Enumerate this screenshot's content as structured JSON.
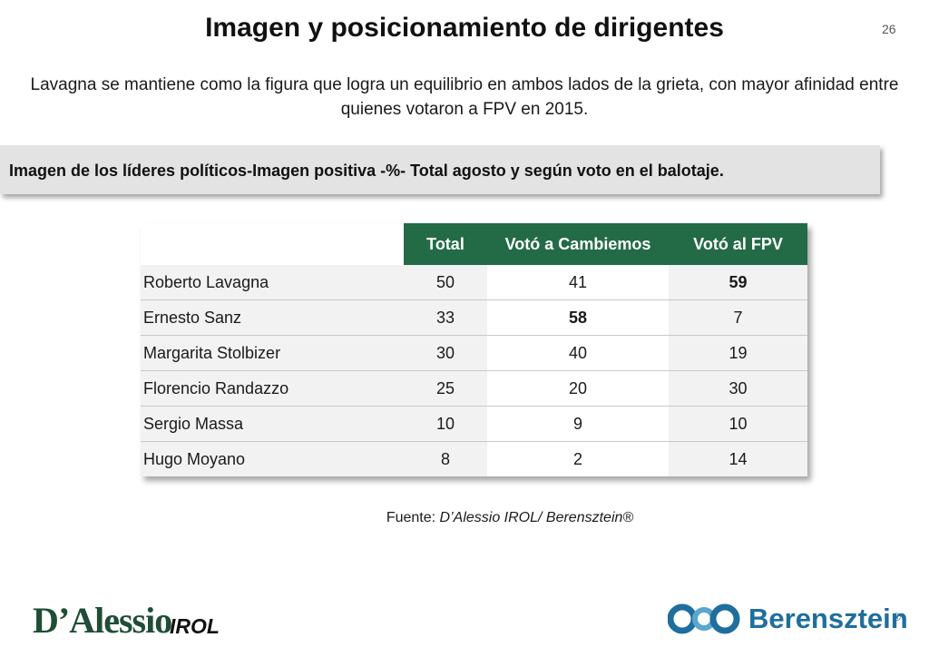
{
  "page": {
    "title": "Imagen y posicionamiento de dirigentes",
    "page_number": "26",
    "subtitle_line1": "Lavagna se mantiene como la figura que logra un equilibrio en ambos lados de la grieta, con mayor afinidad entre",
    "subtitle_line2": "quienes votaron a FPV en 2015."
  },
  "section": {
    "heading": "Imagen de los líderes políticos-Imagen positiva -%- Total agosto y según voto en el balotaje."
  },
  "table": {
    "columns": [
      "Total",
      "Votó a Cambiemos",
      "Votó al FPV"
    ],
    "rows": [
      {
        "name": "Roberto Lavagna",
        "total": "50",
        "cambiemos": "41",
        "fpv": "59"
      },
      {
        "name": "Ernesto Sanz",
        "total": "33",
        "cambiemos": "58",
        "fpv": "7"
      },
      {
        "name": "Margarita Stolbizer",
        "total": "30",
        "cambiemos": "40",
        "fpv": "19"
      },
      {
        "name": "Florencio Randazzo",
        "total": "25",
        "cambiemos": "20",
        "fpv": "30"
      },
      {
        "name": "Sergio Massa",
        "total": "10",
        "cambiemos": "9",
        "fpv": "10"
      },
      {
        "name": "Hugo Moyano",
        "total": "8",
        "cambiemos": "2",
        "fpv": "14"
      }
    ]
  },
  "source": {
    "label": "Fuente:",
    "text": "D’Alessio IROL/ Berensztein®"
  },
  "logos": {
    "dalessio": "D’Alessio",
    "irol": "IROL",
    "berensztein": "Berensztein",
    "registered": "®"
  },
  "colors": {
    "header_green": "#236b47",
    "row_gray": "#f2f2f2",
    "section_bar": "#e3e3e3",
    "berensztein_blue": "#1e6e9e"
  }
}
